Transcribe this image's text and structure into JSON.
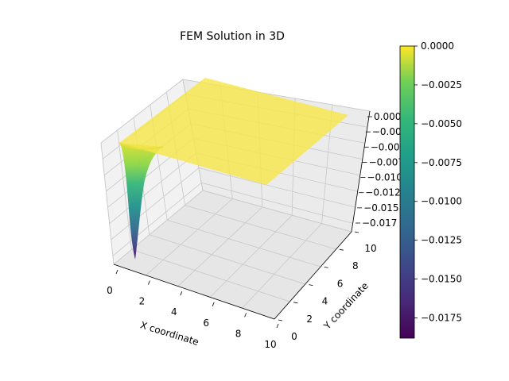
{
  "chart_data": {
    "type": "surface3d",
    "title": "FEM Solution in 3D",
    "xlabel": "X coordinate",
    "ylabel": "Y coordinate",
    "zlabel": "",
    "xlim": [
      0,
      10
    ],
    "ylim": [
      0,
      10
    ],
    "zlim": [
      -0.0188,
      0.0
    ],
    "x_ticks": [
      "0",
      "2",
      "4",
      "6",
      "8",
      "10"
    ],
    "y_ticks": [
      "0",
      "2",
      "4",
      "6",
      "8",
      "10"
    ],
    "z_ticks": [
      "0.000",
      "−0.002",
      "−0.005",
      "−0.007",
      "−0.010",
      "−0.012",
      "−0.015",
      "−0.017"
    ],
    "surface": {
      "description_values": {
        "plateau_value": 0.0,
        "min_value": -0.0188,
        "min_location": {
          "x": 0.9,
          "y": 0.0
        }
      },
      "colormap": "viridis"
    },
    "colorbar": {
      "range": [
        -0.0188,
        0.0
      ],
      "ticks": [
        "0.0000",
        "−0.0025",
        "−0.0050",
        "−0.0075",
        "−0.0100",
        "−0.0125",
        "−0.0150",
        "−0.0175"
      ],
      "tick_values": [
        0.0,
        -0.0025,
        -0.005,
        -0.0075,
        -0.01,
        -0.0125,
        -0.015,
        -0.0175
      ]
    },
    "grid": true
  }
}
